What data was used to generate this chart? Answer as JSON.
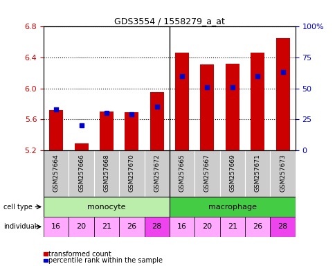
{
  "title": "GDS3554 / 1558279_a_at",
  "samples": [
    "GSM257664",
    "GSM257666",
    "GSM257668",
    "GSM257670",
    "GSM257672",
    "GSM257665",
    "GSM257667",
    "GSM257669",
    "GSM257671",
    "GSM257673"
  ],
  "transformed_count": [
    5.72,
    5.29,
    5.7,
    5.69,
    5.95,
    6.46,
    6.31,
    6.32,
    6.46,
    6.65
  ],
  "percentile_rank": [
    33,
    20,
    30,
    29,
    35,
    60,
    51,
    51,
    60,
    63
  ],
  "ylim_left": [
    5.2,
    6.8
  ],
  "ylim_right": [
    0,
    100
  ],
  "yticks_left": [
    5.2,
    5.6,
    6.0,
    6.4,
    6.8
  ],
  "yticks_right": [
    0,
    25,
    50,
    75,
    100
  ],
  "ytick_labels_right": [
    "0",
    "25",
    "50",
    "75",
    "100%"
  ],
  "individuals": [
    "16",
    "20",
    "21",
    "26",
    "28",
    "16",
    "20",
    "21",
    "26",
    "28"
  ],
  "bar_color": "#CC0000",
  "percentile_color": "#0000CC",
  "bar_width": 0.55,
  "base_value": 5.2,
  "left_label_color": "#CC0000",
  "right_label_color": "#0000CC",
  "legend_red": "transformed count",
  "legend_blue": "percentile rank within the sample",
  "monocyte_color": "#bbeeaa",
  "macrophage_color": "#44cc44",
  "ind_colors": [
    "#ffaaff",
    "#ffaaff",
    "#ffaaff",
    "#ffaaff",
    "#ee44ee",
    "#ffaaff",
    "#ffaaff",
    "#ffaaff",
    "#ffaaff",
    "#ee44ee"
  ],
  "sample_bg_color": "#cccccc",
  "sep_color": "#000000"
}
